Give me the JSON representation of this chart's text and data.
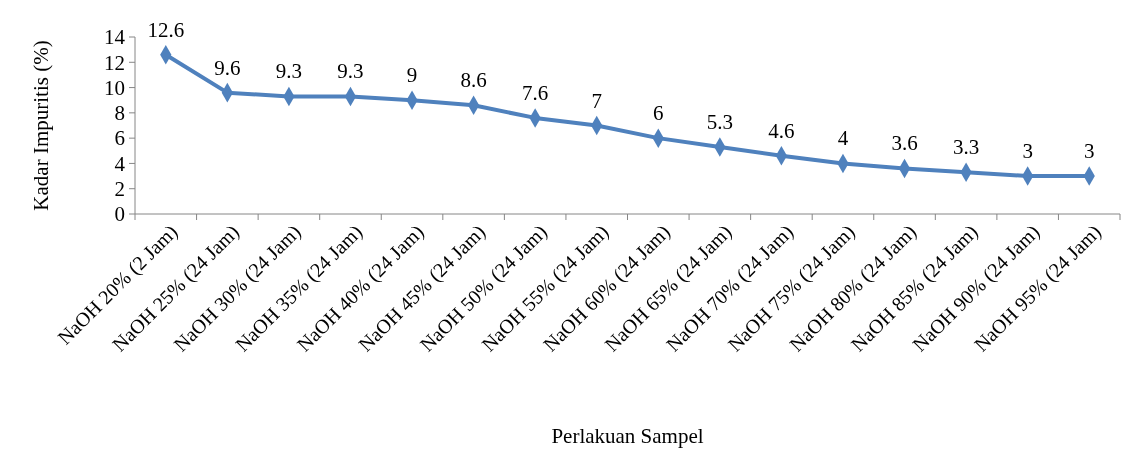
{
  "chart_data": {
    "type": "line",
    "xlabel": "Perlakuan Sampel",
    "ylabel": "Kadar Impuritis (%)",
    "categories": [
      "NaOH 20% (2 Jam)",
      "NaOH 25% (24 Jam)",
      "NaOH 30% (24 Jam)",
      "NaOH 35% (24 Jam)",
      "NaOH 40% (24 Jam)",
      "NaOH 45% (24 Jam)",
      "NaOH 50% (24 Jam)",
      "NaOH 55% (24 Jam)",
      "NaOH 60% (24 Jam)",
      "NaOH 65% (24 Jam)",
      "NaOH 70% (24 Jam)",
      "NaOH 75% (24 Jam)",
      "NaOH 80% (24 Jam)",
      "NaOH 85% (24 Jam)",
      "NaOH 90% (24 Jam)",
      "NaOH 95% (24 Jam)"
    ],
    "series": [
      {
        "color": "#4f81bd",
        "values": [
          12.6,
          9.6,
          9.3,
          9.3,
          9,
          8.6,
          7.6,
          7,
          6,
          5.3,
          4.6,
          4,
          3.6,
          3.3,
          3,
          3
        ]
      }
    ],
    "ylim": [
      0,
      14
    ],
    "yticks": [
      0,
      2,
      4,
      6,
      8,
      10,
      12,
      14
    ],
    "grid": false,
    "marker": "diamond",
    "line_style": "solid",
    "data_labels": true
  }
}
